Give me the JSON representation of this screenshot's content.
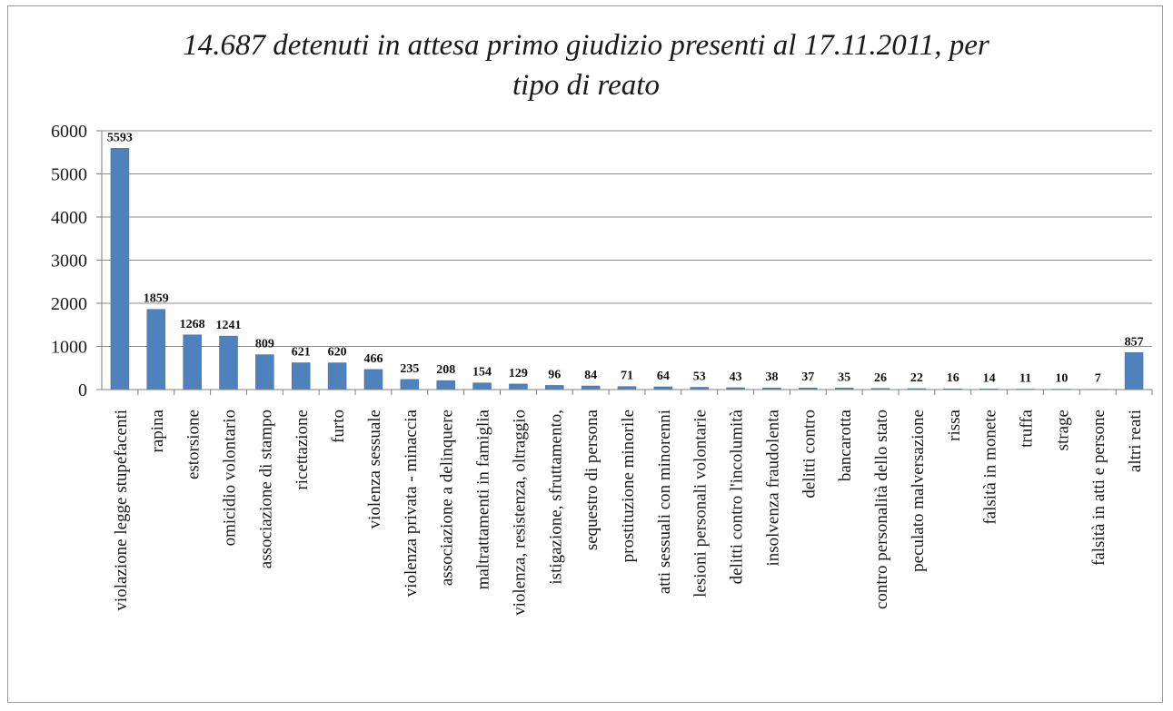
{
  "chart_data": {
    "type": "bar",
    "title_line1": "14.687 detenuti in attesa primo giudizio presenti al 17.11.2011, per",
    "title_line2": "tipo di reato",
    "xlabel": "",
    "ylabel": "",
    "ylim": [
      0,
      6000
    ],
    "yticks": [
      0,
      1000,
      2000,
      3000,
      4000,
      5000,
      6000
    ],
    "grid": true,
    "bar_color": "#4f81bd",
    "categories": [
      "violazione legge stupefacenti",
      "rapina",
      "estorsione",
      "omicidio volontario",
      "associazione di stampo",
      "ricettazione",
      "furto",
      "violenza sessuale",
      "violenza privata - minaccia",
      "associazione a delinquere",
      "maltrattamenti in famiglia",
      "violenza, resistenza, oltraggio",
      "istigazione, sfruttamento,",
      "sequestro di persona",
      "prostituzione minorile",
      "atti sessuali con minorenni",
      "lesioni personali volontarie",
      "delitti contro l'incolumità",
      "insolvenza fraudolenta",
      "delitti contro",
      "bancarotta",
      "contro personalità dello stato",
      "peculato malversazione",
      "rissa",
      "falsità in monete",
      "truffa",
      "strage",
      "falsità in atti e persone",
      "altri reati"
    ],
    "values": [
      5593,
      1859,
      1268,
      1241,
      809,
      621,
      620,
      466,
      235,
      208,
      154,
      129,
      96,
      84,
      71,
      64,
      53,
      43,
      38,
      37,
      35,
      26,
      22,
      16,
      14,
      11,
      10,
      7,
      857
    ],
    "data_labels": [
      "5593",
      "1859",
      "1268",
      "1241",
      "809",
      "621",
      "620",
      "466",
      "235",
      "208",
      "154",
      "129",
      "96",
      "84",
      "71",
      "64",
      "53",
      "43",
      "38",
      "37",
      "35",
      "26",
      "22",
      "16",
      "14",
      "11",
      "10",
      "7",
      "857"
    ]
  }
}
